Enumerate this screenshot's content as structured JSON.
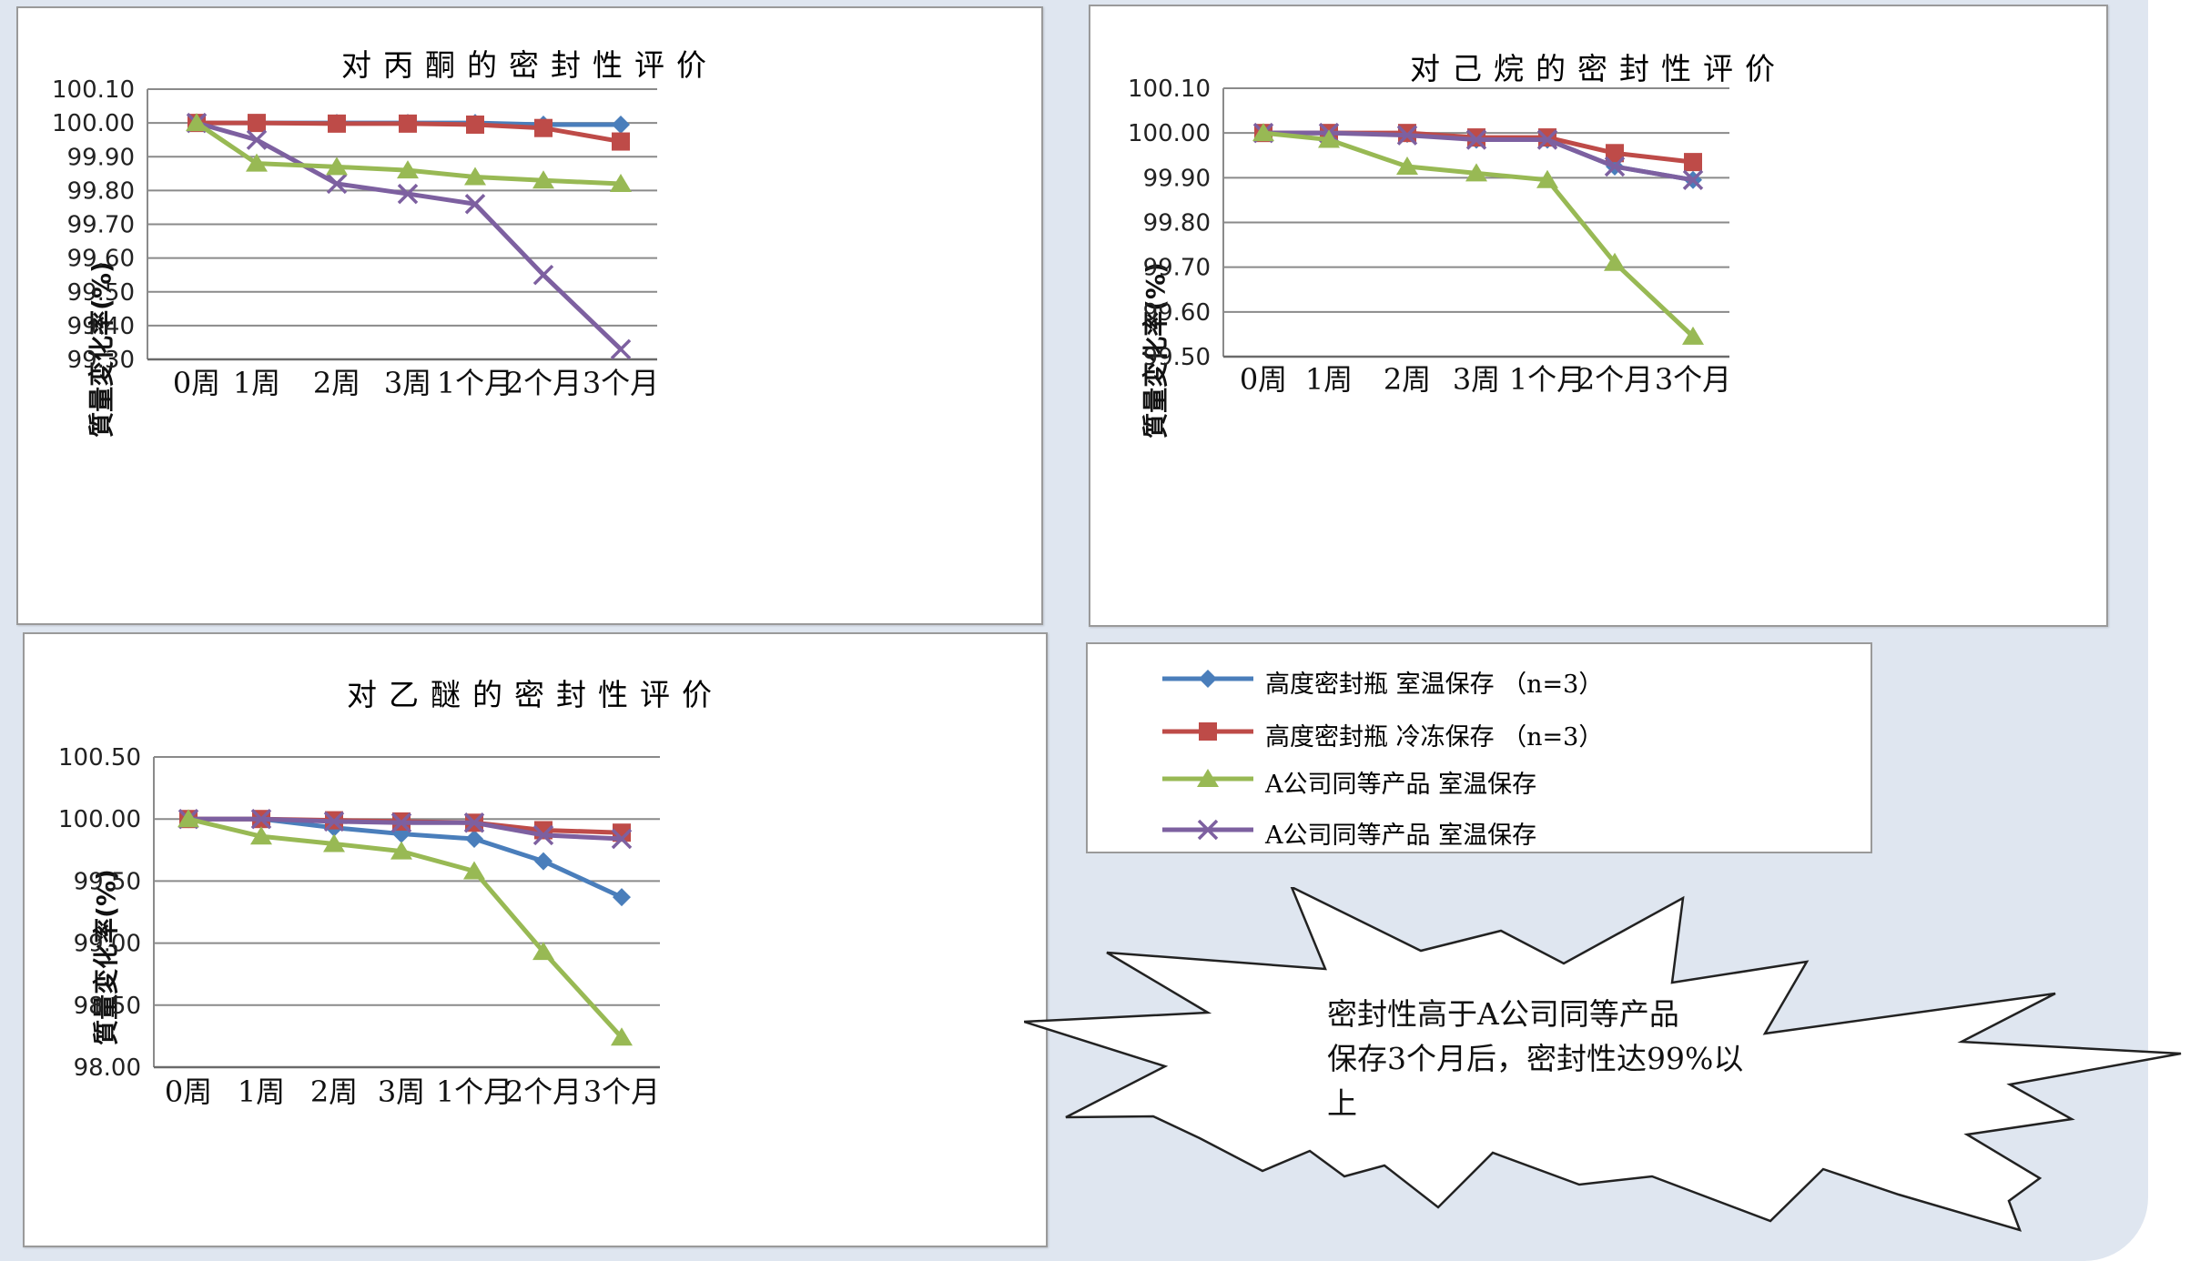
{
  "legend": [
    {
      "label": "高度密封瓶 室温保存 （n=3）",
      "color": "#4a7ebb",
      "marker": "diamond"
    },
    {
      "label": "高度密封瓶 冷冻保存 （n=3）",
      "color": "#be4b48",
      "marker": "square"
    },
    {
      "label": "A公司同等产品 室温保存",
      "color": "#98b954",
      "marker": "triangle"
    },
    {
      "label": "A公司同等产品 室温保存",
      "color": "#7d60a0",
      "marker": "x"
    }
  ],
  "callout": {
    "line1": "密封性高于A公司同等产品",
    "line2": "保存3个月后，密封性达99%以",
    "line3": "上"
  },
  "chart_data": [
    {
      "type": "line",
      "title": "对丙酮的密封性评价",
      "ylabel": "質量変化率(%)",
      "categories": [
        "0周",
        "1周",
        "2周",
        "3周",
        "1个月",
        "2个月",
        "3个月"
      ],
      "ylim": [
        99.3,
        100.1
      ],
      "yticks": [
        "99.30",
        "99.40",
        "99.50",
        "99.60",
        "99.70",
        "99.80",
        "99.90",
        "100.00",
        "100.10"
      ],
      "grid": true,
      "series": [
        {
          "name": "高度密封瓶 室温保存 （n=3）",
          "values": [
            100.0,
            100.0,
            100.0,
            100.0,
            100.0,
            99.995,
            99.995
          ]
        },
        {
          "name": "高度密封瓶 冷冻保存 （n=3）",
          "values": [
            100.0,
            100.0,
            99.998,
            99.998,
            99.995,
            99.985,
            99.945
          ]
        },
        {
          "name": "A公司同等产品 室温保存",
          "values": [
            100.0,
            99.88,
            99.87,
            99.86,
            99.84,
            99.83,
            99.82
          ]
        },
        {
          "name": "A公司同等产品 室温保存",
          "values": [
            100.0,
            99.95,
            99.82,
            99.79,
            99.76,
            99.55,
            99.33
          ]
        }
      ]
    },
    {
      "type": "line",
      "title": "对己烷的密封性评价",
      "ylabel": "質量変化率(%)",
      "categories": [
        "0周",
        "1周",
        "2周",
        "3周",
        "1个月",
        "2个月",
        "3个月"
      ],
      "ylim": [
        99.5,
        100.1
      ],
      "yticks": [
        "99.50",
        "99.60",
        "99.70",
        "99.80",
        "99.90",
        "100.00",
        "100.10"
      ],
      "grid": true,
      "series": [
        {
          "name": "高度密封瓶 室温保存 （n=3）",
          "values": [
            100.0,
            100.0,
            99.998,
            99.985,
            99.985,
            99.925,
            99.895
          ]
        },
        {
          "name": "高度密封瓶 冷冻保存 （n=3）",
          "values": [
            100.0,
            100.0,
            100.0,
            99.99,
            99.99,
            99.955,
            99.935
          ]
        },
        {
          "name": "A公司同等产品 室温保存",
          "values": [
            100.0,
            99.985,
            99.925,
            99.91,
            99.895,
            99.71,
            99.545
          ]
        },
        {
          "name": "A公司同等产品 室温保存",
          "values": [
            100.0,
            100.0,
            99.995,
            99.985,
            99.985,
            99.925,
            99.895
          ]
        }
      ]
    },
    {
      "type": "line",
      "title": "对乙醚的密封性评价",
      "ylabel": "質量変化率(%)",
      "categories": [
        "0周",
        "1周",
        "2周",
        "3周",
        "1个月",
        "2个月",
        "3个月"
      ],
      "ylim": [
        98.0,
        100.5
      ],
      "yticks": [
        "98.00",
        "98.50",
        "99.00",
        "99.50",
        "100.00",
        "100.50"
      ],
      "grid": true,
      "series": [
        {
          "name": "高度密封瓶 室温保存 （n=3）",
          "values": [
            100.0,
            100.0,
            99.93,
            99.88,
            99.84,
            99.66,
            99.37
          ]
        },
        {
          "name": "高度密封瓶 冷冻保存 （n=3）",
          "values": [
            100.0,
            100.0,
            99.99,
            99.98,
            99.97,
            99.91,
            99.89
          ]
        },
        {
          "name": "A公司同等产品 室温保存",
          "values": [
            100.0,
            99.86,
            99.8,
            99.74,
            99.58,
            98.93,
            98.24
          ]
        },
        {
          "name": "A公司同等产品 室温保存",
          "values": [
            100.0,
            100.0,
            99.98,
            99.97,
            99.97,
            99.87,
            99.84
          ]
        }
      ]
    }
  ]
}
